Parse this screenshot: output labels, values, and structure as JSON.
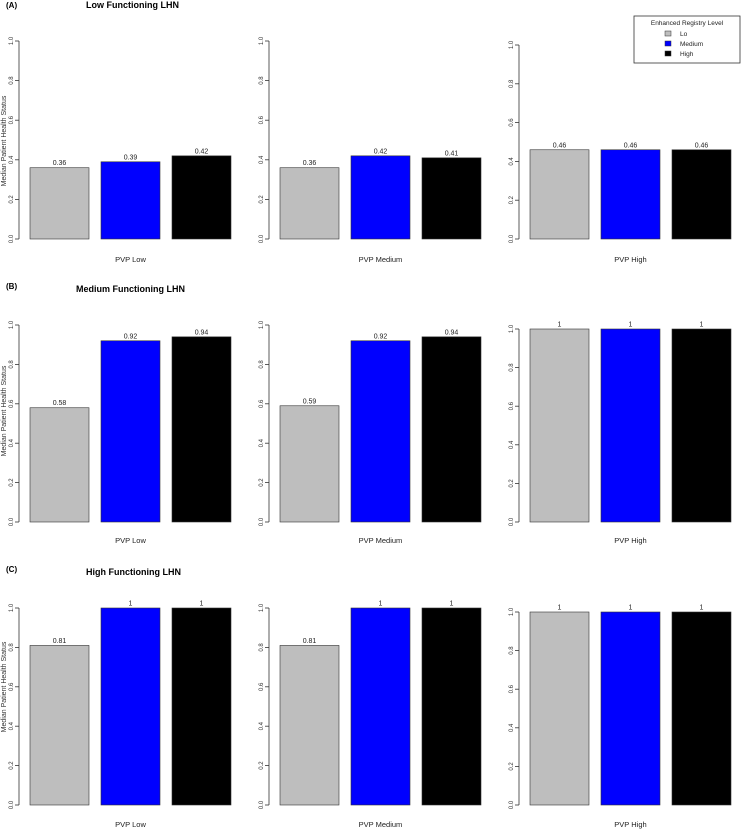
{
  "legend": {
    "title": "Enhanced Registry Level",
    "entries": [
      {
        "label": "Lo",
        "color": "#bebebe"
      },
      {
        "label": "Medium",
        "color": "#0000ff"
      },
      {
        "label": "High",
        "color": "#000000"
      }
    ],
    "placement": "top-right"
  },
  "chart_data": [
    {
      "type": "bar",
      "panel": "(A)",
      "title": "Low Functioning LHN",
      "ylabel": "Median Patient Health Status",
      "ylim": [
        0,
        1
      ],
      "yticks": [
        "0.0",
        "0.2",
        "0.4",
        "0.6",
        "0.8",
        "1.0"
      ],
      "groups": [
        {
          "xlabel": "PVP Low",
          "values": [
            0.36,
            0.39,
            0.42
          ],
          "labels": [
            "0.36",
            "0.39",
            "0.42"
          ]
        },
        {
          "xlabel": "PVP Medium",
          "values": [
            0.36,
            0.42,
            0.41
          ],
          "labels": [
            "0.36",
            "0.42",
            "0.41"
          ]
        },
        {
          "xlabel": "PVP High",
          "values": [
            0.46,
            0.46,
            0.46
          ],
          "labels": [
            "0.46",
            "0.46",
            "0.46"
          ]
        }
      ]
    },
    {
      "type": "bar",
      "panel": "(B)",
      "title": "Medium Functioning LHN",
      "ylabel": "Median Patient Health Status",
      "ylim": [
        0,
        1
      ],
      "yticks": [
        "0.0",
        "0.2",
        "0.4",
        "0.6",
        "0.8",
        "1.0"
      ],
      "groups": [
        {
          "xlabel": "PVP Low",
          "values": [
            0.58,
            0.92,
            0.94
          ],
          "labels": [
            "0.58",
            "0.92",
            "0.94"
          ]
        },
        {
          "xlabel": "PVP Medium",
          "values": [
            0.59,
            0.92,
            0.94
          ],
          "labels": [
            "0.59",
            "0.92",
            "0.94"
          ]
        },
        {
          "xlabel": "PVP High",
          "values": [
            1,
            1,
            1
          ],
          "labels": [
            "1",
            "1",
            "1"
          ]
        }
      ]
    },
    {
      "type": "bar",
      "panel": "(C)",
      "title": "High Functioning LHN",
      "ylabel": "Median Patient Health Status",
      "ylim": [
        0,
        1
      ],
      "yticks": [
        "0.0",
        "0.2",
        "0.4",
        "0.6",
        "0.8",
        "1.0"
      ],
      "groups": [
        {
          "xlabel": "PVP Low",
          "values": [
            0.81,
            1,
            1
          ],
          "labels": [
            "0.81",
            "1",
            "1"
          ]
        },
        {
          "xlabel": "PVP Medium",
          "values": [
            0.81,
            1,
            1
          ],
          "labels": [
            "0.81",
            "1",
            "1"
          ]
        },
        {
          "xlabel": "PVP High",
          "values": [
            1,
            1,
            1
          ],
          "labels": [
            "1",
            "1",
            "1"
          ]
        }
      ]
    }
  ]
}
